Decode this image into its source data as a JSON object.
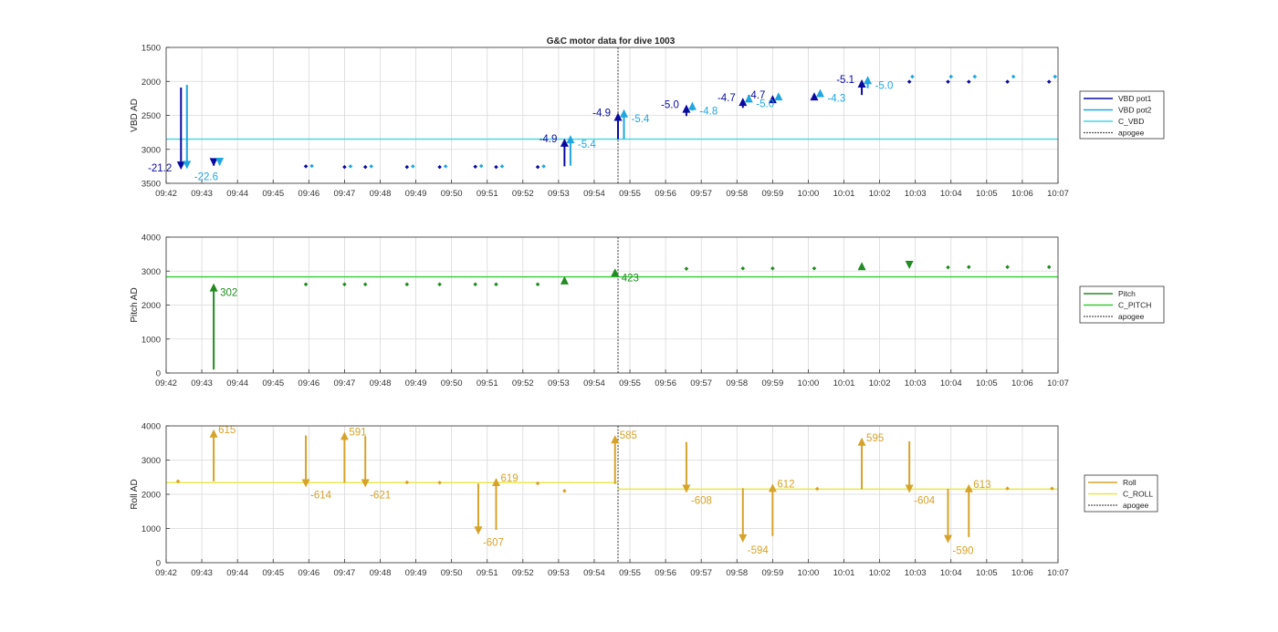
{
  "title": "G&C motor data for dive 1003",
  "apogee_time": "09:54:40",
  "colors": {
    "vbd_pot1": "#0a0aa0",
    "vbd_pot2": "#1fa6e0",
    "c_vbd": "#3fd7e0",
    "pitch": "#228b22",
    "c_pitch": "#32cd32",
    "roll": "#d6a32a",
    "c_roll": "#e8e84a",
    "apogee": "#555555",
    "grid": "#d9d9d9"
  },
  "chart_data": [
    {
      "type": "scatter",
      "id": "vbd",
      "ylabel": "VBD AD",
      "ylim": [
        1500,
        3500
      ],
      "y_reversed": true,
      "yticks": [
        1500,
        2000,
        2500,
        3000,
        3500
      ],
      "xlim": [
        "09:42",
        "10:07"
      ],
      "xticks": [
        "09:42",
        "09:43",
        "09:44",
        "09:45",
        "09:46",
        "09:47",
        "09:48",
        "09:49",
        "09:50",
        "09:51",
        "09:52",
        "09:53",
        "09:54",
        "09:55",
        "09:56",
        "09:57",
        "09:58",
        "09:59",
        "10:00",
        "10:01",
        "10:02",
        "10:03",
        "10:04",
        "10:05",
        "10:06",
        "10:07"
      ],
      "grid": true,
      "legend": {
        "position": "right",
        "entries": [
          "VBD pot1",
          "VBD pot2",
          "C_VBD",
          "apogee"
        ]
      },
      "reference_line": {
        "name": "C_VBD",
        "y": 2850
      },
      "apogee_x": "09:54:40",
      "series": [
        {
          "name": "VBD pot1",
          "color_key": "vbd_pot1",
          "points": [
            {
              "x": "09:45:55",
              "y": 3250
            },
            {
              "x": "09:47:00",
              "y": 3260
            },
            {
              "x": "09:47:35",
              "y": 3260
            },
            {
              "x": "09:48:45",
              "y": 3260
            },
            {
              "x": "09:49:40",
              "y": 3260
            },
            {
              "x": "09:50:40",
              "y": 3255
            },
            {
              "x": "09:51:15",
              "y": 3260
            },
            {
              "x": "09:52:25",
              "y": 3260
            },
            {
              "x": "10:02:50",
              "y": 2005
            },
            {
              "x": "10:03:55",
              "y": 2005
            },
            {
              "x": "10:04:30",
              "y": 2005
            },
            {
              "x": "10:05:35",
              "y": 2005
            },
            {
              "x": "10:06:45",
              "y": 2005
            }
          ],
          "moves": [
            {
              "x": "09:42:25",
              "from": 2090,
              "to": 3300,
              "label": "-21.2"
            },
            {
              "x": "09:43:20",
              "from": 3240,
              "to": 3250,
              "label": ""
            },
            {
              "x": "09:53:10",
              "from": 3250,
              "to": 2840,
              "label": "-4.9"
            },
            {
              "x": "09:54:40",
              "from": 2850,
              "to": 2460,
              "label": "-4.9"
            },
            {
              "x": "09:56:35",
              "from": 2510,
              "to": 2340,
              "label": "-5.0"
            },
            {
              "x": "09:58:10",
              "from": 2390,
              "to": 2240,
              "label": "-4.7"
            },
            {
              "x": "09:59:00",
              "from": 2290,
              "to": 2200,
              "label": "-4.7"
            },
            {
              "x": "10:00:10",
              "from": 2240,
              "to": 2160,
              "label": ""
            },
            {
              "x": "10:01:30",
              "from": 2200,
              "to": 1970,
              "label": "-5.1"
            }
          ]
        },
        {
          "name": "VBD pot2",
          "color_key": "vbd_pot2",
          "points": [
            {
              "x": "09:46:05",
              "y": 3245
            },
            {
              "x": "09:47:10",
              "y": 3250
            },
            {
              "x": "09:47:45",
              "y": 3250
            },
            {
              "x": "09:48:55",
              "y": 3250
            },
            {
              "x": "09:49:50",
              "y": 3250
            },
            {
              "x": "09:50:50",
              "y": 3245
            },
            {
              "x": "09:51:25",
              "y": 3250
            },
            {
              "x": "09:52:35",
              "y": 3250
            },
            {
              "x": "10:02:55",
              "y": 1930
            },
            {
              "x": "10:04:00",
              "y": 1930
            },
            {
              "x": "10:04:40",
              "y": 1930
            },
            {
              "x": "10:05:45",
              "y": 1930
            },
            {
              "x": "10:06:55",
              "y": 1930
            }
          ],
          "moves": [
            {
              "x": "09:42:35",
              "from": 2050,
              "to": 3290,
              "label": "-22.6"
            },
            {
              "x": "09:43:30",
              "from": 3230,
              "to": 3245,
              "label": ""
            },
            {
              "x": "09:53:20",
              "from": 3240,
              "to": 2790,
              "label": "-5.4"
            },
            {
              "x": "09:54:50",
              "from": 2850,
              "to": 2410,
              "label": "-5.4"
            },
            {
              "x": "09:56:45",
              "from": 2430,
              "to": 2300,
              "label": "-4.8"
            },
            {
              "x": "09:58:20",
              "from": 2310,
              "to": 2190,
              "label": "-5.0"
            },
            {
              "x": "09:59:10",
              "from": 2260,
              "to": 2160,
              "label": ""
            },
            {
              "x": "10:00:20",
              "from": 2170,
              "to": 2110,
              "label": "-4.3"
            },
            {
              "x": "10:01:40",
              "from": 2100,
              "to": 1920,
              "label": "-5.0"
            }
          ]
        }
      ]
    },
    {
      "type": "scatter",
      "id": "pitch",
      "ylabel": "Pitch AD",
      "ylim": [
        0,
        4000
      ],
      "yticks": [
        0,
        1000,
        2000,
        3000,
        4000
      ],
      "xlim": [
        "09:42",
        "10:07"
      ],
      "xticks": [
        "09:42",
        "09:43",
        "09:44",
        "09:45",
        "09:46",
        "09:47",
        "09:48",
        "09:49",
        "09:50",
        "09:51",
        "09:52",
        "09:53",
        "09:54",
        "09:55",
        "09:56",
        "09:57",
        "09:58",
        "09:59",
        "10:00",
        "10:01",
        "10:02",
        "10:03",
        "10:04",
        "10:05",
        "10:06",
        "10:07"
      ],
      "grid": true,
      "legend": {
        "position": "right",
        "entries": [
          "Pitch",
          "C_PITCH",
          "apogee"
        ]
      },
      "reference_line": {
        "name": "C_PITCH",
        "y": 2830
      },
      "apogee_x": "09:54:40",
      "series": [
        {
          "name": "Pitch",
          "color_key": "pitch",
          "points": [
            {
              "x": "09:45:55",
              "y": 2610
            },
            {
              "x": "09:47:00",
              "y": 2610
            },
            {
              "x": "09:47:35",
              "y": 2610
            },
            {
              "x": "09:48:45",
              "y": 2610
            },
            {
              "x": "09:49:40",
              "y": 2610
            },
            {
              "x": "09:50:40",
              "y": 2610
            },
            {
              "x": "09:51:15",
              "y": 2610
            },
            {
              "x": "09:52:25",
              "y": 2610
            },
            {
              "x": "09:56:35",
              "y": 3070
            },
            {
              "x": "09:58:10",
              "y": 3080
            },
            {
              "x": "09:59:00",
              "y": 3080
            },
            {
              "x": "10:00:10",
              "y": 3080
            },
            {
              "x": "10:03:55",
              "y": 3110
            },
            {
              "x": "10:04:30",
              "y": 3120
            },
            {
              "x": "10:05:35",
              "y": 3120
            },
            {
              "x": "10:06:45",
              "y": 3120
            }
          ],
          "moves": [
            {
              "x": "09:43:20",
              "from": 100,
              "to": 2640,
              "label": "302"
            },
            {
              "x": "09:53:10",
              "from": 2720,
              "to": 2850,
              "label": ""
            },
            {
              "x": "09:54:35",
              "from": 2940,
              "to": 3080,
              "label": "423"
            },
            {
              "x": "10:01:30",
              "from": 3170,
              "to": 3270,
              "label": ""
            },
            {
              "x": "10:02:50",
              "from": 3160,
              "to": 3060,
              "label": ""
            }
          ]
        }
      ]
    },
    {
      "type": "scatter",
      "id": "roll",
      "ylabel": "Roll AD",
      "ylim": [
        0,
        4000
      ],
      "yticks": [
        0,
        1000,
        2000,
        3000,
        4000
      ],
      "xlim": [
        "09:42",
        "10:07"
      ],
      "xticks": [
        "09:42",
        "09:43",
        "09:44",
        "09:45",
        "09:46",
        "09:47",
        "09:48",
        "09:49",
        "09:50",
        "09:51",
        "09:52",
        "09:53",
        "09:54",
        "09:55",
        "09:56",
        "09:57",
        "09:58",
        "09:59",
        "10:00",
        "10:01",
        "10:02",
        "10:03",
        "10:04",
        "10:05",
        "10:06",
        "10:07"
      ],
      "grid": true,
      "legend": {
        "position": "right",
        "entries": [
          "Roll",
          "C_ROLL",
          "apogee"
        ]
      },
      "reference_segments": [
        {
          "name": "C_ROLL",
          "from": "09:42:00",
          "to": "09:54:40",
          "y": 2340
        },
        {
          "name": "C_ROLL",
          "from": "09:54:40",
          "to": "10:07:00",
          "y": 2150
        }
      ],
      "apogee_x": "09:54:40",
      "series": [
        {
          "name": "Roll",
          "color_key": "roll",
          "points": [
            {
              "x": "09:42:20",
              "y": 2380
            },
            {
              "x": "09:48:45",
              "y": 2350
            },
            {
              "x": "09:49:40",
              "y": 2340
            },
            {
              "x": "09:52:25",
              "y": 2320
            },
            {
              "x": "09:53:10",
              "y": 2100
            },
            {
              "x": "10:00:15",
              "y": 2160
            },
            {
              "x": "10:05:35",
              "y": 2170
            },
            {
              "x": "10:06:50",
              "y": 2170
            }
          ],
          "moves": [
            {
              "x": "09:43:20",
              "from": 2380,
              "to": 3900,
              "label": "615"
            },
            {
              "x": "09:45:55",
              "from": 3720,
              "to": 2200,
              "label": "-614"
            },
            {
              "x": "09:47:00",
              "from": 2340,
              "to": 3830,
              "label": "591"
            },
            {
              "x": "09:47:35",
              "from": 3700,
              "to": 2200,
              "label": "-621"
            },
            {
              "x": "09:50:45",
              "from": 2310,
              "to": 820,
              "label": "-607"
            },
            {
              "x": "09:51:15",
              "from": 960,
              "to": 2480,
              "label": "619"
            },
            {
              "x": "09:54:35",
              "from": 2300,
              "to": 3730,
              "label": "585"
            },
            {
              "x": "09:56:35",
              "from": 3530,
              "to": 2040,
              "label": "-608"
            },
            {
              "x": "09:58:10",
              "from": 2180,
              "to": 590,
              "label": "-594"
            },
            {
              "x": "09:59:00",
              "from": 780,
              "to": 2310,
              "label": "612"
            },
            {
              "x": "10:01:30",
              "from": 2150,
              "to": 3660,
              "label": "595"
            },
            {
              "x": "10:02:50",
              "from": 3550,
              "to": 2040,
              "label": "-604"
            },
            {
              "x": "10:03:55",
              "from": 2160,
              "to": 570,
              "label": "-590"
            },
            {
              "x": "10:04:30",
              "from": 750,
              "to": 2300,
              "label": "613"
            }
          ]
        }
      ]
    }
  ]
}
